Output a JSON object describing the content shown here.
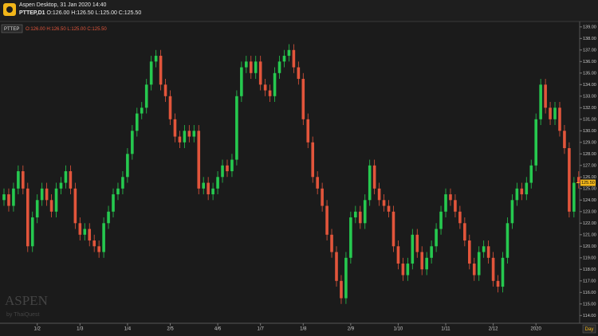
{
  "chart_data": {
    "type": "candlestick",
    "title": "Aspen Desktop, 31 Jan 2020 14:40",
    "symbol": "PTTEP,D1",
    "legend_symbol": "PTTEP",
    "ohlc_text": "O:126.00 H:126.50 L:125.00 C:125.50",
    "watermark": "ASPEN",
    "watermark_sub": "by ThaiQuest",
    "timeframe": "Day",
    "up_color": "#26c94f",
    "down_color": "#e2553b",
    "last_price": {
      "value": 125.5,
      "label": "125.50"
    },
    "ylim": [
      113.4,
      139.4
    ],
    "xlim": [
      -0.84,
      121.2
    ],
    "yticks": [
      {
        "value": 114,
        "label": "114.00"
      },
      {
        "value": 115,
        "label": "115.00"
      },
      {
        "value": 116,
        "label": "116.00"
      },
      {
        "value": 117,
        "label": "117.00"
      },
      {
        "value": 118,
        "label": "118.00"
      },
      {
        "value": 119,
        "label": "119.00"
      },
      {
        "value": 120,
        "label": "120.00"
      },
      {
        "value": 121,
        "label": "121.00"
      },
      {
        "value": 122,
        "label": "122.00"
      },
      {
        "value": 123,
        "label": "123.00"
      },
      {
        "value": 124,
        "label": "124.00"
      },
      {
        "value": 125,
        "label": "125.00"
      },
      {
        "value": 126,
        "label": "126.00"
      },
      {
        "value": 127,
        "label": "127.00"
      },
      {
        "value": 128,
        "label": "128.00"
      },
      {
        "value": 129,
        "label": "129.00"
      },
      {
        "value": 130,
        "label": "130.00"
      },
      {
        "value": 131,
        "label": "131.00"
      },
      {
        "value": 132,
        "label": "132.00"
      },
      {
        "value": 133,
        "label": "133.00"
      },
      {
        "value": 134,
        "label": "134.00"
      },
      {
        "value": 135,
        "label": "135.00"
      },
      {
        "value": 136,
        "label": "136.00"
      },
      {
        "value": 137,
        "label": "137.00"
      },
      {
        "value": 138,
        "label": "138.00"
      },
      {
        "value": 139,
        "label": "139.00"
      }
    ],
    "xticks": [
      {
        "value": 7,
        "label": "1/2"
      },
      {
        "value": 16,
        "label": "1/3"
      },
      {
        "value": 26,
        "label": "1/4"
      },
      {
        "value": 35,
        "label": "2/5"
      },
      {
        "value": 45,
        "label": "4/6"
      },
      {
        "value": 54,
        "label": "1/7"
      },
      {
        "value": 63,
        "label": "1/8"
      },
      {
        "value": 73,
        "label": "2/9"
      },
      {
        "value": 83,
        "label": "1/10"
      },
      {
        "value": 93,
        "label": "1/11"
      },
      {
        "value": 103,
        "label": "2/12"
      },
      {
        "value": 112,
        "label": "2020"
      }
    ],
    "series": [
      {
        "name": "PTTEP",
        "open": [
          124,
          124.5,
          123.5,
          125,
          126.5,
          125,
          120,
          122.5,
          124,
          125,
          124,
          123,
          125,
          125.5,
          126.5,
          125,
          122,
          121,
          121.5,
          120.5,
          120,
          119.5,
          122,
          123,
          124.5,
          125,
          126,
          128,
          130,
          131.5,
          132,
          134,
          136,
          136.5,
          134,
          133,
          131,
          129.5,
          129,
          130,
          129.5,
          130,
          125,
          125.5,
          124.5,
          125,
          126,
          127,
          126.5,
          127.5,
          133,
          135.5,
          136,
          135,
          136,
          134,
          133.5,
          133,
          135,
          136,
          136.5,
          137,
          135.5,
          134.5,
          131,
          129,
          126,
          125,
          123.5,
          121,
          119.5,
          117,
          115.5,
          119,
          122.5,
          123,
          122,
          124,
          127,
          125,
          124,
          123.5,
          123,
          120,
          118.5,
          117.5,
          118.5,
          121,
          119.5,
          118,
          119,
          120,
          121.5,
          123,
          124.5,
          124,
          123,
          122,
          120.5,
          118.5,
          117.5,
          119.5,
          120,
          119,
          117,
          116.5,
          119,
          122,
          124,
          125,
          124.5,
          125.5,
          127,
          131,
          134,
          132,
          131,
          132,
          130,
          128.5,
          123,
          126
        ],
        "high": [
          125,
          125,
          125.5,
          127,
          127,
          125.5,
          123,
          124.5,
          125.5,
          125.5,
          124.5,
          125.5,
          126,
          127,
          127,
          125.5,
          122.5,
          122,
          122,
          121,
          120.5,
          122.5,
          123.5,
          125,
          125.5,
          126.5,
          128.5,
          130.5,
          132,
          132.5,
          134.5,
          136.5,
          137,
          137,
          134.5,
          133.5,
          131.5,
          130,
          130.5,
          130.5,
          130.5,
          130.5,
          126,
          126,
          125.5,
          126.5,
          127.5,
          127.5,
          128,
          133.5,
          136,
          136.5,
          136.5,
          136.5,
          136.5,
          134.5,
          134,
          135.5,
          136.5,
          137,
          137.5,
          137.5,
          136,
          135,
          131.5,
          129.5,
          126.5,
          125.5,
          124,
          121.5,
          120,
          117.5,
          119.5,
          123,
          123.5,
          123.5,
          124.5,
          127.5,
          127.5,
          125.5,
          124.5,
          124,
          123.5,
          120.5,
          119,
          119,
          121.5,
          121.5,
          120,
          119.5,
          120.5,
          122,
          123.5,
          125,
          125,
          124.5,
          123.5,
          122.5,
          121,
          119,
          120,
          120.5,
          120.5,
          119.5,
          117.5,
          119.5,
          122.5,
          124.5,
          125.5,
          125.5,
          126,
          127.5,
          131.5,
          134.5,
          134.5,
          132.5,
          132.5,
          132.5,
          130.5,
          129,
          126,
          126.5
        ],
        "low": [
          123.5,
          123,
          123,
          124.5,
          124.5,
          119.5,
          119.5,
          122,
          123.5,
          123.5,
          122.5,
          122.5,
          124.5,
          125,
          124.5,
          121.5,
          120.5,
          120.5,
          120,
          119.5,
          119,
          119,
          121.5,
          122.5,
          124,
          124.5,
          125.5,
          127.5,
          129.5,
          131,
          131.5,
          133.5,
          135.5,
          133.5,
          132.5,
          130.5,
          129,
          128.5,
          128.5,
          129,
          129,
          124.5,
          124.5,
          124,
          124,
          124.5,
          125.5,
          126,
          126,
          127,
          132.5,
          135,
          134.5,
          134.5,
          133.5,
          133,
          132.5,
          132.5,
          134.5,
          135.5,
          136,
          135,
          134,
          130.5,
          128.5,
          125.5,
          124.5,
          123,
          120.5,
          119,
          116.5,
          115,
          115,
          118.5,
          122,
          121.5,
          121.5,
          123.5,
          124.5,
          123.5,
          123,
          122.5,
          119.5,
          118,
          117,
          117,
          118,
          119,
          117.5,
          117.5,
          118.5,
          119.5,
          121,
          122.5,
          123.5,
          122.5,
          121.5,
          120,
          118,
          117,
          117,
          119,
          118.5,
          116.5,
          116,
          116,
          118.5,
          121.5,
          123.5,
          124,
          124,
          125,
          126.5,
          130.5,
          131.5,
          130.5,
          130.5,
          129.5,
          128,
          122.5,
          122.5,
          125
        ],
        "close": [
          124.5,
          123.5,
          125,
          126.5,
          125,
          120,
          122.5,
          124,
          125,
          124,
          123,
          125,
          125.5,
          126.5,
          125,
          122,
          121,
          121.5,
          120.5,
          120,
          119.5,
          122,
          123,
          124.5,
          125,
          126,
          128,
          130,
          131.5,
          132,
          134,
          136,
          136.5,
          134,
          133,
          131,
          129.5,
          129,
          130,
          129.5,
          130,
          125,
          125.5,
          124.5,
          125,
          126,
          127,
          126.5,
          127.5,
          133,
          135.5,
          136,
          135,
          136,
          134,
          133.5,
          133,
          135,
          136,
          136.5,
          137,
          135.5,
          134.5,
          131,
          129,
          126,
          125,
          123.5,
          121,
          119.5,
          117,
          115.5,
          119,
          122.5,
          123,
          122,
          124,
          127,
          125,
          124,
          123.5,
          123,
          120,
          118.5,
          117.5,
          118.5,
          121,
          119.5,
          118,
          119,
          120,
          121.5,
          123,
          124.5,
          124,
          123,
          122,
          120.5,
          118.5,
          117.5,
          119.5,
          120,
          119,
          117,
          116.5,
          119,
          122,
          124,
          125,
          124.5,
          125.5,
          127,
          131,
          134,
          132,
          131,
          132,
          130,
          128.5,
          123,
          125.5,
          125.5
        ]
      }
    ]
  }
}
